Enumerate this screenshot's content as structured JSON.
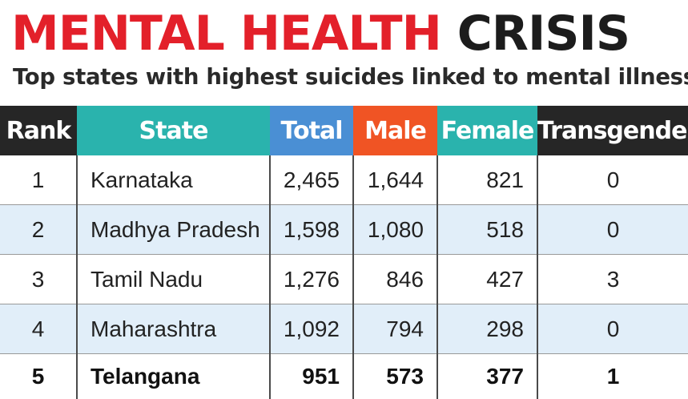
{
  "title": {
    "part1": "MENTAL HEALTH",
    "part2": "CRISIS"
  },
  "subtitle": "Top states with highest suicides linked to mental illness",
  "colors": {
    "title_red": "#e3202a",
    "header_rank": "#262626",
    "header_state": "#2ab3ad",
    "header_total": "#4a8fd4",
    "header_male": "#f05424",
    "header_female": "#2ab3ad",
    "header_transgender": "#262626",
    "row_alt": "#e1eef9"
  },
  "chart_data": {
    "type": "table",
    "title": "MENTAL HEALTH CRISIS",
    "subtitle": "Top states with highest suicides linked to mental illness",
    "columns": [
      "Rank",
      "State",
      "Total",
      "Male",
      "Female",
      "Transgender"
    ],
    "rows": [
      [
        "1",
        "Karnataka",
        "2,465",
        "1,644",
        "821",
        "0"
      ],
      [
        "2",
        "Madhya Pradesh",
        "1,598",
        "1,080",
        "518",
        "0"
      ],
      [
        "3",
        "Tamil Nadu",
        "1,276",
        "846",
        "427",
        "3"
      ],
      [
        "4",
        "Maharashtra",
        "1,092",
        "794",
        "298",
        "0"
      ],
      [
        "5",
        "Telangana",
        "951",
        "573",
        "377",
        "1"
      ]
    ],
    "highlighted_row": 4
  }
}
